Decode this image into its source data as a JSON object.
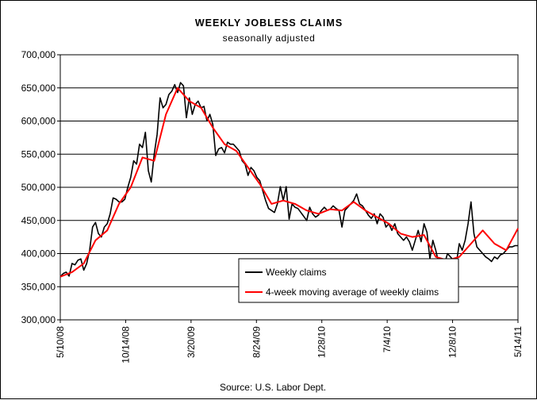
{
  "chart_data": {
    "type": "line",
    "title": "WEEKLY JOBLESS CLAIMS",
    "subtitle": "seasonally adjusted",
    "source": "Source: U.S. Labor Dept.",
    "ylim": [
      300000,
      700000
    ],
    "y_ticks": [
      300000,
      350000,
      400000,
      450000,
      500000,
      550000,
      600000,
      650000,
      700000
    ],
    "y_tick_labels": [
      "300,000",
      "350,000",
      "400,000",
      "450,000",
      "500,000",
      "550,000",
      "600,000",
      "650,000",
      "700,000"
    ],
    "x_tick_labels": [
      "5/10/08",
      "10/14/08",
      "3/20/09",
      "8/24/09",
      "1/28/10",
      "7/4/10",
      "12/8/10",
      "5/14/11"
    ],
    "grid": "horizontal",
    "legend_position": "bottom-right",
    "series": [
      {
        "name": "Weekly claims",
        "color": "#000000",
        "x": [
          0,
          1,
          2,
          3,
          4,
          5,
          6,
          7,
          8,
          9,
          10,
          11,
          12,
          13,
          14,
          15,
          16,
          17,
          18,
          19,
          20,
          21,
          22,
          23,
          24,
          25,
          26,
          27,
          28,
          29,
          30,
          31,
          32,
          33,
          34,
          35,
          36,
          37,
          38,
          39,
          40,
          41,
          42,
          43,
          44,
          45,
          46,
          47,
          48,
          49,
          50,
          51,
          52,
          53,
          54,
          55,
          56,
          57,
          58,
          59,
          60,
          61,
          62,
          63,
          64,
          65,
          66,
          67,
          68,
          69,
          70,
          71,
          72,
          73,
          74,
          75,
          76,
          77,
          78,
          79,
          80,
          81,
          82,
          83,
          84,
          85,
          86,
          87,
          88,
          89,
          90,
          91,
          92,
          93,
          94,
          95,
          96,
          97,
          98,
          99,
          100,
          101,
          102,
          103,
          104,
          105,
          106,
          107,
          108,
          109,
          110,
          111,
          112,
          113,
          114,
          115,
          116,
          117,
          118,
          119,
          120,
          121,
          122,
          123,
          124,
          125,
          126,
          127,
          128,
          129,
          130,
          131,
          132,
          133,
          134,
          135,
          136,
          137,
          138,
          139,
          140,
          141,
          142,
          143,
          144,
          145,
          146,
          147,
          148,
          149,
          150,
          151,
          152,
          153,
          154,
          155,
          156
        ],
        "values": [
          365000,
          370000,
          372000,
          366000,
          385000,
          383000,
          390000,
          392000,
          375000,
          385000,
          405000,
          440000,
          447000,
          430000,
          425000,
          440000,
          445000,
          460000,
          484000,
          482000,
          478000,
          478000,
          482000,
          500000,
          515000,
          540000,
          535000,
          565000,
          560000,
          583000,
          525000,
          508000,
          550000,
          580000,
          635000,
          620000,
          625000,
          640000,
          645000,
          655000,
          643000,
          658000,
          653000,
          605000,
          635000,
          610000,
          625000,
          630000,
          620000,
          622000,
          600000,
          610000,
          595000,
          548000,
          558000,
          560000,
          552000,
          568000,
          565000,
          565000,
          560000,
          555000,
          540000,
          535000,
          518000,
          530000,
          525000,
          515000,
          510000,
          495000,
          480000,
          468000,
          465000,
          462000,
          475000,
          501000,
          480000,
          501000,
          452000,
          475000,
          470000,
          468000,
          462000,
          456000,
          450000,
          470000,
          460000,
          455000,
          458000,
          465000,
          470000,
          465000,
          467000,
          472000,
          468000,
          465000,
          440000,
          465000,
          470000,
          475000,
          480000,
          490000,
          475000,
          472000,
          465000,
          458000,
          453000,
          460000,
          445000,
          460000,
          455000,
          440000,
          445000,
          435000,
          445000,
          430000,
          425000,
          420000,
          425000,
          418000,
          405000,
          420000,
          435000,
          418000,
          445000,
          432000,
          392000,
          420000,
          405000,
          385000,
          375000,
          385000,
          400000,
          395000,
          390000,
          385000,
          415000,
          405000,
          420000,
          445000,
          478000,
          430000,
          410000,
          405000,
          400000,
          395000,
          392000,
          388000,
          395000,
          392000,
          398000,
          400000,
          405000,
          410000,
          410000,
          412000,
          412000
        ],
        "note": "values plotted as read from chart"
      },
      {
        "name": "4-week moving average of weekly claims",
        "color": "#ff0000",
        "x": [
          0,
          4,
          8,
          12,
          16,
          20,
          24,
          28,
          32,
          36,
          40,
          44,
          48,
          52,
          56,
          60,
          64,
          68,
          72,
          76,
          80,
          84,
          88,
          92,
          96,
          100,
          104,
          108,
          112,
          116,
          120,
          124,
          128,
          132,
          136,
          140,
          144,
          148,
          152,
          156
        ],
        "values": [
          365000,
          372000,
          385000,
          420000,
          435000,
          475000,
          500000,
          545000,
          540000,
          610000,
          650000,
          630000,
          620000,
          590000,
          565000,
          555000,
          530000,
          505000,
          475000,
          480000,
          475000,
          465000,
          460000,
          467000,
          465000,
          478000,
          465000,
          455000,
          445000,
          430000,
          425000,
          428000,
          395000,
          390000,
          395000,
          415000,
          435000,
          415000,
          405000,
          438000
        ]
      }
    ]
  }
}
